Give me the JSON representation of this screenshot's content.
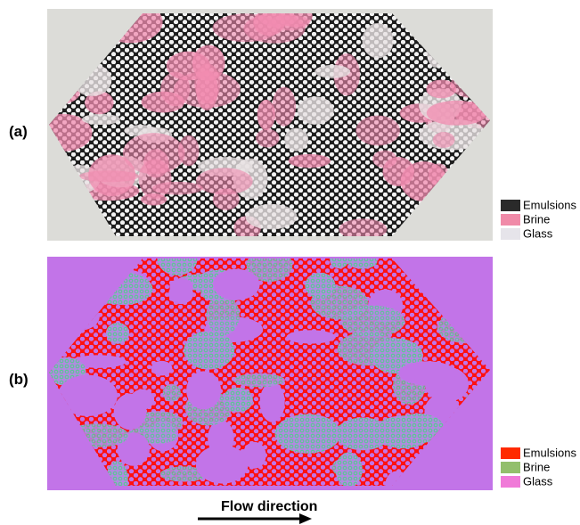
{
  "panels": [
    {
      "label": "(a)",
      "legend": [
        "Emulsions",
        "Brine",
        "Glass"
      ]
    },
    {
      "label": "(b)",
      "legend": [
        "Emulsions",
        "Brine",
        "Glass"
      ]
    }
  ],
  "flow_direction": "Flow direction"
}
